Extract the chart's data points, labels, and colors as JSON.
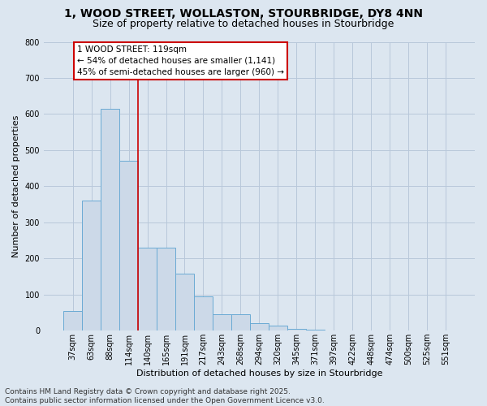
{
  "title_line1": "1, WOOD STREET, WOLLASTON, STOURBRIDGE, DY8 4NN",
  "title_line2": "Size of property relative to detached houses in Stourbridge",
  "xlabel": "Distribution of detached houses by size in Stourbridge",
  "ylabel": "Number of detached properties",
  "categories": [
    "37sqm",
    "63sqm",
    "88sqm",
    "114sqm",
    "140sqm",
    "165sqm",
    "191sqm",
    "217sqm",
    "243sqm",
    "268sqm",
    "294sqm",
    "320sqm",
    "345sqm",
    "371sqm",
    "397sqm",
    "422sqm",
    "448sqm",
    "474sqm",
    "500sqm",
    "525sqm",
    "551sqm"
  ],
  "values": [
    55,
    360,
    615,
    470,
    230,
    230,
    158,
    95,
    45,
    45,
    20,
    14,
    5,
    2,
    1,
    1,
    1,
    0,
    0,
    0,
    0
  ],
  "bar_color": "#ccd9e8",
  "bar_edge_color": "#6aaad4",
  "grid_color": "#b8c8da",
  "bg_color": "#dce6f0",
  "vline_color": "#cc0000",
  "annotation_text": "1 WOOD STREET: 119sqm\n← 54% of detached houses are smaller (1,141)\n45% of semi-detached houses are larger (960) →",
  "footer_line1": "Contains HM Land Registry data © Crown copyright and database right 2025.",
  "footer_line2": "Contains public sector information licensed under the Open Government Licence v3.0.",
  "ylim_max": 800,
  "yticks": [
    0,
    100,
    200,
    300,
    400,
    500,
    600,
    700,
    800
  ],
  "title_fontsize": 10,
  "subtitle_fontsize": 9,
  "axis_label_fontsize": 8,
  "tick_fontsize": 7,
  "footer_fontsize": 6.5,
  "annot_fontsize": 7.5
}
